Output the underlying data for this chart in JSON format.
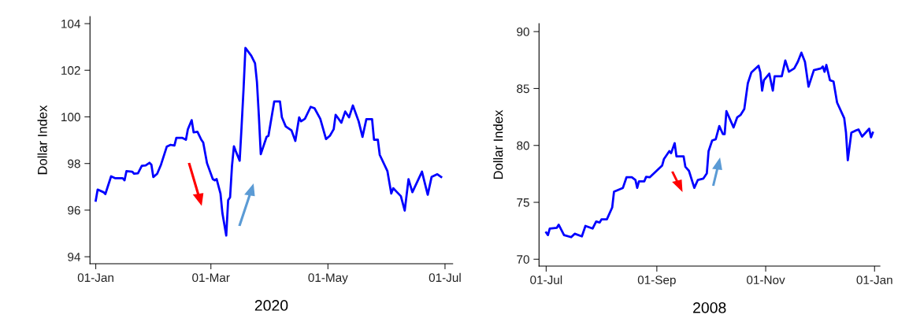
{
  "chart_data": [
    {
      "type": "line",
      "xlabel": "2020",
      "ylabel": "Dollar Index",
      "xlim": [
        "2019-12-29",
        "2020-07-05"
      ],
      "ylim": [
        93.7,
        104.3
      ],
      "yticks": [
        94,
        96,
        98,
        100,
        102,
        104
      ],
      "xticks": [
        {
          "value": "2020-01-01",
          "label": "01-Jan"
        },
        {
          "value": "2020-03-01",
          "label": "01-Mar"
        },
        {
          "value": "2020-05-01",
          "label": "01-May"
        },
        {
          "value": "2020-07-01",
          "label": "01-Jul"
        }
      ],
      "grid": false,
      "series": [
        {
          "color": "#0000ff",
          "x": [
            "2020-01-01",
            "2020-01-02",
            "2020-01-05",
            "2020-01-06",
            "2020-01-09",
            "2020-01-11",
            "2020-01-15",
            "2020-01-16",
            "2020-01-17",
            "2020-01-20",
            "2020-01-21",
            "2020-01-23",
            "2020-01-25",
            "2020-01-27",
            "2020-01-29",
            "2020-01-30",
            "2020-01-31",
            "2020-02-02",
            "2020-02-04",
            "2020-02-07",
            "2020-02-09",
            "2020-02-11",
            "2020-02-12",
            "2020-02-15",
            "2020-02-17",
            "2020-02-18",
            "2020-02-20",
            "2020-02-21",
            "2020-02-23",
            "2020-02-25",
            "2020-02-26",
            "2020-02-28",
            "2020-03-02",
            "2020-03-03",
            "2020-03-04",
            "2020-03-06",
            "2020-03-07",
            "2020-03-09",
            "2020-03-10",
            "2020-03-11",
            "2020-03-12",
            "2020-03-13",
            "2020-03-14",
            "2020-03-16",
            "2020-03-17",
            "2020-03-18",
            "2020-03-19",
            "2020-03-22",
            "2020-03-24",
            "2020-03-25",
            "2020-03-26",
            "2020-03-27",
            "2020-03-30",
            "2020-03-31",
            "2020-04-03",
            "2020-04-06",
            "2020-04-07",
            "2020-04-09",
            "2020-04-12",
            "2020-04-14",
            "2020-04-16",
            "2020-04-17",
            "2020-04-19",
            "2020-04-22",
            "2020-04-24",
            "2020-04-27",
            "2020-04-30",
            "2020-05-02",
            "2020-05-04",
            "2020-05-05",
            "2020-05-08",
            "2020-05-10",
            "2020-05-12",
            "2020-05-14",
            "2020-05-17",
            "2020-05-19",
            "2020-05-21",
            "2020-05-24",
            "2020-05-25",
            "2020-05-27",
            "2020-05-28",
            "2020-06-01",
            "2020-06-03",
            "2020-06-04",
            "2020-06-06",
            "2020-06-08",
            "2020-06-10",
            "2020-06-12",
            "2020-06-14",
            "2020-06-19",
            "2020-06-22",
            "2020-06-24",
            "2020-06-27",
            "2020-06-29"
          ],
          "values": [
            96.41,
            96.88,
            96.77,
            96.69,
            97.45,
            97.37,
            97.37,
            97.28,
            97.67,
            97.65,
            97.56,
            97.58,
            97.9,
            97.92,
            98.03,
            97.95,
            97.42,
            97.56,
            97.95,
            98.72,
            98.8,
            98.77,
            99.1,
            99.1,
            99.02,
            99.47,
            99.86,
            99.34,
            99.36,
            99.02,
            98.9,
            98.01,
            97.33,
            97.28,
            97.33,
            96.71,
            95.87,
            94.91,
            96.43,
            96.55,
            97.9,
            98.74,
            98.52,
            98.12,
            99.59,
            101.16,
            102.96,
            102.63,
            102.3,
            101.5,
            100.04,
            98.4,
            99.14,
            99.19,
            100.66,
            100.66,
            99.98,
            99.59,
            99.42,
            98.97,
            99.98,
            99.81,
            99.92,
            100.43,
            100.37,
            99.92,
            99.05,
            99.19,
            99.47,
            100.09,
            99.75,
            100.23,
            99.98,
            100.49,
            99.81,
            99.14,
            99.9,
            99.9,
            99.02,
            99.02,
            98.37,
            97.67,
            96.71,
            96.94,
            96.77,
            96.6,
            95.98,
            97.33,
            96.77,
            97.65,
            96.66,
            97.42,
            97.54,
            97.42
          ]
        }
      ]
    },
    {
      "type": "line",
      "xlabel": "2008",
      "ylabel": "Dollar Index",
      "xlim": [
        "2008-06-27",
        "2009-01-04"
      ],
      "ylim": [
        69.4,
        90.7
      ],
      "yticks": [
        70,
        75,
        80,
        85,
        90
      ],
      "xticks": [
        {
          "value": "2008-07-01",
          "label": "01-Jul"
        },
        {
          "value": "2008-09-01",
          "label": "01-Sep"
        },
        {
          "value": "2008-11-01",
          "label": "01-Nov"
        },
        {
          "value": "2009-01-01",
          "label": "01-Jan"
        }
      ],
      "grid": false,
      "series": [
        {
          "color": "#0000ff",
          "x": [
            "2008-07-01",
            "2008-07-02",
            "2008-07-03",
            "2008-07-07",
            "2008-07-08",
            "2008-07-11",
            "2008-07-15",
            "2008-07-17",
            "2008-07-21",
            "2008-07-23",
            "2008-07-27",
            "2008-07-29",
            "2008-07-31",
            "2008-08-01",
            "2008-08-04",
            "2008-08-07",
            "2008-08-08",
            "2008-08-13",
            "2008-08-15",
            "2008-08-18",
            "2008-08-20",
            "2008-08-21",
            "2008-08-22",
            "2008-08-25",
            "2008-08-26",
            "2008-08-28",
            "2008-09-04",
            "2008-09-05",
            "2008-09-08",
            "2008-09-09",
            "2008-09-11",
            "2008-09-12",
            "2008-09-16",
            "2008-09-17",
            "2008-09-19",
            "2008-09-22",
            "2008-09-24",
            "2008-09-27",
            "2008-09-29",
            "2008-09-30",
            "2008-10-02",
            "2008-10-04",
            "2008-10-06",
            "2008-10-08",
            "2008-10-09",
            "2008-10-10",
            "2008-10-14",
            "2008-10-16",
            "2008-10-18",
            "2008-10-20",
            "2008-10-22",
            "2008-10-24",
            "2008-10-28",
            "2008-10-29",
            "2008-10-30",
            "2008-10-31",
            "2008-11-03",
            "2008-11-05",
            "2008-11-06",
            "2008-11-10",
            "2008-11-12",
            "2008-11-14",
            "2008-11-17",
            "2008-11-19",
            "2008-11-21",
            "2008-11-23",
            "2008-11-25",
            "2008-11-28",
            "2008-12-02",
            "2008-12-03",
            "2008-12-04",
            "2008-12-05",
            "2008-12-07",
            "2008-12-09",
            "2008-12-11",
            "2008-12-15",
            "2008-12-16",
            "2008-12-17",
            "2008-12-19",
            "2008-12-22",
            "2008-12-23",
            "2008-12-25",
            "2008-12-29",
            "2008-12-30",
            "2008-12-31"
          ],
          "values": [
            72.35,
            72.12,
            72.7,
            72.77,
            73.04,
            72.12,
            71.94,
            72.24,
            72.01,
            72.93,
            72.7,
            73.32,
            73.23,
            73.51,
            73.51,
            74.55,
            75.93,
            76.27,
            77.2,
            77.2,
            76.97,
            76.27,
            76.85,
            76.85,
            77.24,
            77.2,
            78.24,
            78.81,
            79.5,
            79.32,
            80.2,
            79.04,
            79.04,
            78.12,
            77.77,
            76.27,
            76.97,
            77.08,
            77.54,
            79.5,
            80.43,
            80.54,
            81.7,
            81.0,
            81.0,
            83.01,
            81.58,
            82.46,
            82.69,
            83.19,
            85.46,
            86.42,
            87.0,
            86.42,
            84.81,
            85.73,
            86.31,
            84.81,
            86.08,
            86.08,
            87.46,
            86.47,
            86.77,
            87.35,
            88.15,
            87.35,
            85.16,
            86.61,
            86.77,
            86.93,
            86.47,
            87.07,
            85.73,
            85.62,
            83.77,
            82.39,
            81.12,
            78.7,
            81.12,
            81.35,
            81.4,
            80.78,
            81.47,
            80.71,
            81.12
          ]
        }
      ]
    }
  ]
}
